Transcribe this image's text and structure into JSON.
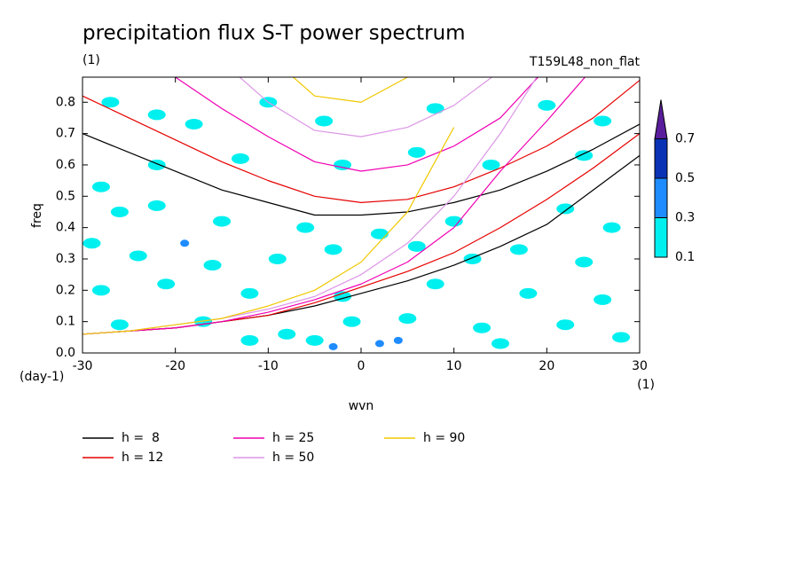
{
  "chart_data": {
    "type": "line",
    "title": "precipitation flux S-T power spectrum",
    "subtitle": "(1)",
    "run_label": "T159L48_non_flat",
    "x_label": "wvn",
    "x_unit": "(1)",
    "y_label": "freq",
    "y_unit": "(day-1)",
    "xlim": [
      -30,
      30
    ],
    "ylim": [
      0,
      0.88
    ],
    "xticks": [
      -30,
      -20,
      -10,
      0,
      10,
      20,
      30
    ],
    "yticks": [
      {
        "value": 0,
        "label": "0.0"
      },
      0.1,
      0.2,
      0.3,
      0.4,
      0.5,
      0.6,
      0.7,
      0.8
    ],
    "x": [
      -30,
      -25,
      -20,
      -15,
      -10,
      -5,
      0,
      5,
      10,
      15,
      20,
      25,
      30
    ],
    "series": [
      {
        "name": "h =  8",
        "color": "#000000",
        "branches": [
          [
            0.7,
            0.64,
            0.58,
            0.52,
            0.48,
            0.44,
            0.44,
            0.45,
            0.48,
            0.52,
            0.58,
            0.65,
            0.73
          ],
          [
            0.06,
            0.07,
            0.08,
            0.1,
            0.12,
            0.15,
            0.19,
            0.23,
            0.28,
            0.34,
            0.41,
            0.52,
            0.63
          ]
        ]
      },
      {
        "name": "h = 12",
        "color": "#e60000",
        "branches": [
          [
            0.82,
            0.75,
            0.68,
            0.61,
            0.55,
            0.5,
            0.48,
            0.49,
            0.53,
            0.59,
            0.66,
            0.75,
            0.87
          ],
          [
            0.06,
            0.07,
            0.08,
            0.1,
            0.12,
            0.16,
            0.21,
            0.26,
            0.32,
            0.4,
            0.49,
            0.59,
            0.7
          ]
        ]
      },
      {
        "name": "h = 25",
        "color": "#f000b4",
        "branches": [
          [
            null,
            null,
            0.88,
            0.78,
            0.69,
            0.61,
            0.58,
            0.6,
            0.66,
            0.75,
            0.91,
            null,
            null
          ],
          [
            0.06,
            0.07,
            0.08,
            0.1,
            0.13,
            0.17,
            0.22,
            0.29,
            0.4,
            0.58,
            0.74,
            0.91,
            null
          ]
        ]
      },
      {
        "name": "h = 50",
        "color": "#dc96e6",
        "branches": [
          [
            null,
            null,
            null,
            0.93,
            0.8,
            0.71,
            0.69,
            0.72,
            0.79,
            0.9,
            null,
            null,
            null
          ],
          [
            0.06,
            0.07,
            0.09,
            0.11,
            0.14,
            0.18,
            0.25,
            0.35,
            0.5,
            0.7,
            0.93,
            null,
            null
          ]
        ]
      },
      {
        "name": "h = 90",
        "color": "#f0c800",
        "branches": [
          [
            null,
            null,
            null,
            null,
            0.95,
            0.82,
            0.8,
            0.88,
            null,
            null,
            null,
            null,
            null
          ],
          [
            0.06,
            0.07,
            0.09,
            0.11,
            0.15,
            0.2,
            0.29,
            0.45,
            0.72,
            null,
            null,
            null,
            null
          ]
        ]
      }
    ],
    "shading_levels": [
      0.1,
      0.3,
      0.5,
      0.7
    ],
    "shading_colors": [
      "#00f0f0",
      "#1e8cff",
      "#0a32b4",
      "#5a1e9c"
    ],
    "shading": [
      {
        "x": -27,
        "y": 0.8,
        "v": 0.2
      },
      {
        "x": -22,
        "y": 0.76,
        "v": 0.2
      },
      {
        "x": -18,
        "y": 0.73,
        "v": 0.2
      },
      {
        "x": -10,
        "y": 0.8,
        "v": 0.2
      },
      {
        "x": -4,
        "y": 0.74,
        "v": 0.2
      },
      {
        "x": 8,
        "y": 0.78,
        "v": 0.2
      },
      {
        "x": 20,
        "y": 0.79,
        "v": 0.2
      },
      {
        "x": 26,
        "y": 0.74,
        "v": 0.2
      },
      {
        "x": -28,
        "y": 0.53,
        "v": 0.2
      },
      {
        "x": -26,
        "y": 0.45,
        "v": 0.2
      },
      {
        "x": -22,
        "y": 0.47,
        "v": 0.2
      },
      {
        "x": -15,
        "y": 0.42,
        "v": 0.2
      },
      {
        "x": -6,
        "y": 0.4,
        "v": 0.2
      },
      {
        "x": 2,
        "y": 0.38,
        "v": 0.2
      },
      {
        "x": 10,
        "y": 0.42,
        "v": 0.2
      },
      {
        "x": 22,
        "y": 0.46,
        "v": 0.2
      },
      {
        "x": 27,
        "y": 0.4,
        "v": 0.2
      },
      {
        "x": -29,
        "y": 0.35,
        "v": 0.2
      },
      {
        "x": -24,
        "y": 0.31,
        "v": 0.2
      },
      {
        "x": -19,
        "y": 0.35,
        "v": 0.4
      },
      {
        "x": -16,
        "y": 0.28,
        "v": 0.2
      },
      {
        "x": -9,
        "y": 0.3,
        "v": 0.2
      },
      {
        "x": -3,
        "y": 0.33,
        "v": 0.2
      },
      {
        "x": 6,
        "y": 0.34,
        "v": 0.2
      },
      {
        "x": 12,
        "y": 0.3,
        "v": 0.2
      },
      {
        "x": 17,
        "y": 0.33,
        "v": 0.2
      },
      {
        "x": 24,
        "y": 0.29,
        "v": 0.2
      },
      {
        "x": -28,
        "y": 0.2,
        "v": 0.2
      },
      {
        "x": -21,
        "y": 0.22,
        "v": 0.2
      },
      {
        "x": -12,
        "y": 0.19,
        "v": 0.2
      },
      {
        "x": -2,
        "y": 0.18,
        "v": 0.2
      },
      {
        "x": 8,
        "y": 0.22,
        "v": 0.2
      },
      {
        "x": 18,
        "y": 0.19,
        "v": 0.2
      },
      {
        "x": 26,
        "y": 0.17,
        "v": 0.2
      },
      {
        "x": -26,
        "y": 0.09,
        "v": 0.2
      },
      {
        "x": -17,
        "y": 0.1,
        "v": 0.2
      },
      {
        "x": -8,
        "y": 0.06,
        "v": 0.2
      },
      {
        "x": -1,
        "y": 0.1,
        "v": 0.2
      },
      {
        "x": 5,
        "y": 0.11,
        "v": 0.2
      },
      {
        "x": 13,
        "y": 0.08,
        "v": 0.2
      },
      {
        "x": 22,
        "y": 0.09,
        "v": 0.2
      },
      {
        "x": 28,
        "y": 0.05,
        "v": 0.2
      },
      {
        "x": -12,
        "y": 0.04,
        "v": 0.2
      },
      {
        "x": -5,
        "y": 0.04,
        "v": 0.2
      },
      {
        "x": 2,
        "y": 0.03,
        "v": 0.4
      },
      {
        "x": 4,
        "y": 0.04,
        "v": 0.4
      },
      {
        "x": -3,
        "y": 0.02,
        "v": 0.4
      },
      {
        "x": 15,
        "y": 0.03,
        "v": 0.2
      },
      {
        "x": -2,
        "y": 0.6,
        "v": 0.2
      },
      {
        "x": 14,
        "y": 0.6,
        "v": 0.2
      },
      {
        "x": -22,
        "y": 0.6,
        "v": 0.2
      },
      {
        "x": -13,
        "y": 0.62,
        "v": 0.2
      },
      {
        "x": 24,
        "y": 0.63,
        "v": 0.2
      },
      {
        "x": 6,
        "y": 0.64,
        "v": 0.2
      }
    ]
  }
}
